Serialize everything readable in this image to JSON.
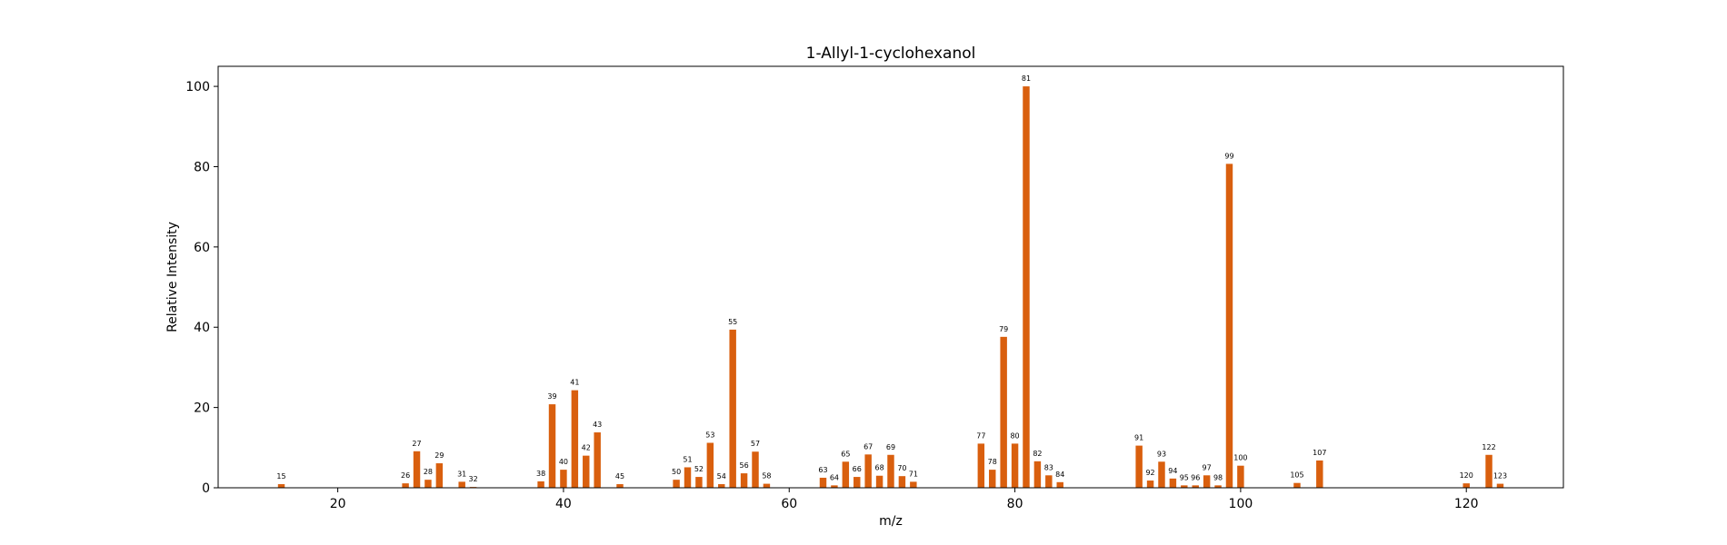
{
  "chart_data": {
    "type": "bar",
    "title": "1-Allyl-1-cyclohexanol",
    "xlabel": "m/z",
    "ylabel": "Relative Intensity",
    "xlim": [
      9.4,
      128.6
    ],
    "ylim": [
      0,
      105
    ],
    "xticks": [
      20,
      40,
      60,
      80,
      100,
      120
    ],
    "yticks": [
      0,
      20,
      40,
      60,
      80,
      100
    ],
    "bar_color": "#d95f0e",
    "grid": false,
    "x": [
      15,
      26,
      27,
      28,
      29,
      31,
      32,
      38,
      39,
      40,
      41,
      42,
      43,
      45,
      50,
      51,
      52,
      53,
      54,
      55,
      56,
      57,
      58,
      63,
      64,
      65,
      66,
      67,
      68,
      69,
      70,
      71,
      77,
      78,
      79,
      80,
      81,
      82,
      83,
      84,
      91,
      92,
      93,
      94,
      95,
      96,
      97,
      98,
      99,
      100,
      105,
      107,
      120,
      122,
      123
    ],
    "values": [
      0.9,
      1.1,
      9.1,
      2.0,
      6.1,
      1.5,
      0.2,
      1.6,
      20.8,
      4.5,
      24.3,
      8.0,
      13.8,
      0.9,
      2.0,
      5.1,
      2.7,
      11.2,
      0.9,
      39.4,
      3.6,
      9.0,
      1.0,
      2.5,
      0.6,
      6.5,
      2.7,
      8.3,
      3.0,
      8.2,
      2.9,
      1.5,
      11.0,
      4.5,
      37.6,
      11.0,
      100.0,
      6.6,
      3.1,
      1.4,
      10.5,
      1.8,
      6.5,
      2.3,
      0.6,
      0.6,
      3.1,
      0.6,
      80.7,
      5.5,
      1.2,
      6.8,
      1.1,
      8.2,
      1.0
    ]
  }
}
